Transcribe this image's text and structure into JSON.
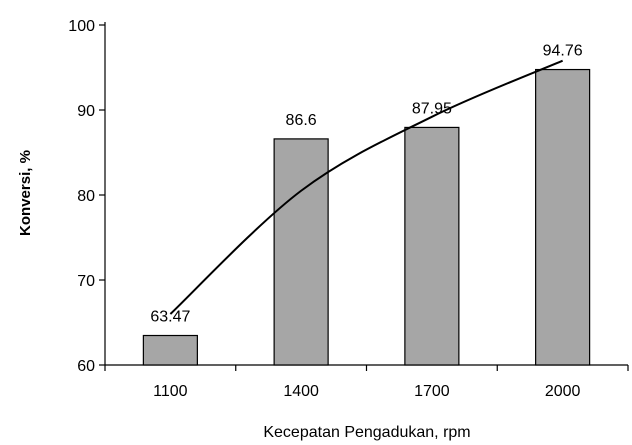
{
  "chart_data": {
    "type": "bar",
    "categories": [
      "1100",
      "1400",
      "1700",
      "2000"
    ],
    "values": [
      63.47,
      86.6,
      87.95,
      94.76
    ],
    "data_labels": [
      "63.47",
      "86.6",
      "87.95",
      "94.76"
    ],
    "xlabel": "Kecepatan Pengadukan, rpm",
    "ylabel": "Konversi, %",
    "ylim": [
      60,
      100
    ],
    "yticks": [
      60,
      70,
      80,
      90,
      100
    ],
    "grid": false,
    "legend": "none",
    "bar_color": "#a6a6a6",
    "trendline": {
      "type": "curve",
      "points": [
        {
          "x": "1100",
          "y": 66.0
        },
        {
          "x": "1400",
          "y": 80.5
        },
        {
          "x": "1700",
          "y": 89.2
        },
        {
          "x": "2000",
          "y": 95.8
        }
      ]
    }
  }
}
